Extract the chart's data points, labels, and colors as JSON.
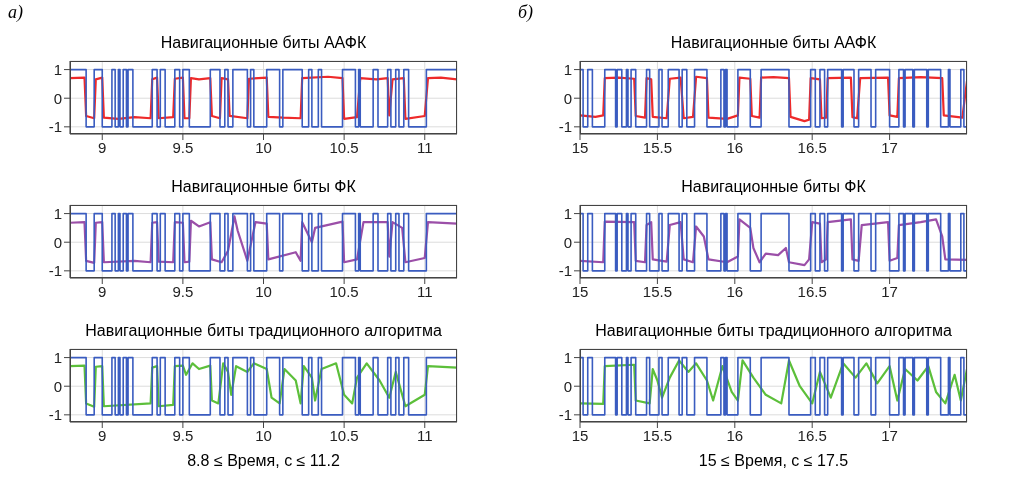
{
  "chart_data": [
    {
      "type": "line",
      "title": "Навигационные биты ААФК",
      "annotations": [
        "а)"
      ],
      "xlim": [
        8.8,
        11.2
      ],
      "xticks": [
        9,
        9.5,
        10,
        10.5,
        11
      ],
      "ylim": [
        -1.25,
        1.3
      ],
      "yticks": [
        -1,
        0,
        1
      ],
      "grid": true,
      "series": [
        {
          "color": "#ee2a2a",
          "x": [
            8.8,
            8.89,
            8.9,
            8.95,
            8.96,
            9.0,
            9.01,
            9.1,
            9.2,
            9.3,
            9.31,
            9.34,
            9.35,
            9.44,
            9.45,
            9.5,
            9.51,
            9.54,
            9.55,
            9.6,
            9.67,
            9.68,
            9.73,
            9.74,
            9.78,
            9.79,
            9.9,
            9.91,
            10.02,
            10.03,
            10.12,
            10.23,
            10.24,
            10.4,
            10.49,
            10.5,
            10.58,
            10.6,
            10.7,
            10.77,
            10.78,
            10.8,
            10.87,
            10.88,
            11.0,
            11.02,
            11.1,
            11.2
          ],
          "values": [
            0.7,
            0.72,
            -0.62,
            -0.7,
            0.66,
            0.72,
            -0.68,
            -0.72,
            -0.66,
            -0.7,
            0.66,
            0.72,
            -0.7,
            -0.66,
            0.68,
            0.72,
            -0.7,
            -0.7,
            0.7,
            0.66,
            0.7,
            -0.62,
            -0.7,
            0.7,
            0.66,
            -0.62,
            -0.7,
            0.68,
            0.72,
            -0.65,
            -0.68,
            -0.7,
            0.7,
            0.75,
            0.7,
            -0.72,
            -0.66,
            0.7,
            0.66,
            0.7,
            -0.6,
            0.66,
            0.7,
            -0.72,
            -0.62,
            0.7,
            0.72,
            0.66
          ]
        },
        {
          "type": "step",
          "color": "#3a5cc0",
          "x": [
            8.8,
            8.9,
            8.95,
            9.0,
            9.06,
            9.08,
            9.1,
            9.11,
            9.13,
            9.15,
            9.16,
            9.19,
            9.31,
            9.34,
            9.36,
            9.39,
            9.45,
            9.48,
            9.5,
            9.54,
            9.67,
            9.73,
            9.76,
            9.78,
            9.81,
            9.9,
            9.92,
            9.94,
            10.02,
            10.1,
            10.12,
            10.24,
            10.28,
            10.3,
            10.34,
            10.36,
            10.49,
            10.57,
            10.59,
            10.6,
            10.68,
            10.71,
            10.77,
            10.79,
            10.82,
            10.84,
            10.87,
            10.9,
            11.01,
            11.2
          ],
          "values": [
            1,
            -1,
            1,
            -1,
            1,
            -1,
            1,
            -1,
            1,
            -1,
            1,
            -1,
            1,
            -1,
            1,
            -1,
            1,
            -1,
            1,
            -1,
            1,
            -1,
            1,
            -1,
            1,
            -1,
            1,
            -1,
            1,
            -1,
            1,
            -1,
            1,
            -1,
            1,
            -1,
            1,
            -1,
            1,
            -1,
            1,
            -1,
            1,
            -1,
            1,
            -1,
            1,
            -1,
            1,
            1
          ]
        }
      ]
    },
    {
      "type": "line",
      "title": "Навигационные биты ААФК",
      "annotations": [
        "б)"
      ],
      "xlim": [
        15,
        17.5
      ],
      "xticks": [
        15,
        15.5,
        16,
        16.5,
        17
      ],
      "ylim": [
        -1.25,
        1.3
      ],
      "yticks": [
        -1,
        0,
        1
      ],
      "grid": true,
      "series": [
        {
          "color": "#ee2a2a",
          "x": [
            15.0,
            15.1,
            15.15,
            15.16,
            15.25,
            15.35,
            15.36,
            15.42,
            15.43,
            15.46,
            15.47,
            15.56,
            15.58,
            15.65,
            15.67,
            15.73,
            15.75,
            15.82,
            15.83,
            15.95,
            16.02,
            16.03,
            16.1,
            16.11,
            16.16,
            16.17,
            16.25,
            16.35,
            16.36,
            16.45,
            16.48,
            16.49,
            16.55,
            16.56,
            16.59,
            16.6,
            16.75,
            16.76,
            16.79,
            16.81,
            16.99,
            17.0,
            17.05,
            17.06,
            17.2,
            17.34,
            17.35,
            17.47,
            17.5
          ],
          "values": [
            -0.6,
            -0.65,
            -0.6,
            0.7,
            0.72,
            0.68,
            -0.62,
            -0.68,
            0.7,
            0.66,
            -0.65,
            -0.7,
            0.68,
            0.72,
            -0.7,
            -0.65,
            0.75,
            0.7,
            -0.68,
            -0.72,
            -0.6,
            0.72,
            0.68,
            -0.62,
            -0.68,
            0.72,
            0.74,
            0.7,
            -0.65,
            -0.8,
            -0.75,
            0.7,
            0.66,
            -0.7,
            -0.68,
            0.7,
            0.72,
            -0.66,
            -0.7,
            0.7,
            0.72,
            -0.6,
            -0.65,
            0.7,
            0.74,
            0.7,
            -0.6,
            -0.68,
            0.6
          ]
        },
        {
          "type": "step",
          "color": "#3a5cc0",
          "x": [
            15.0,
            15.02,
            15.05,
            15.08,
            15.16,
            15.23,
            15.24,
            15.27,
            15.3,
            15.31,
            15.33,
            15.36,
            15.43,
            15.45,
            15.51,
            15.53,
            15.57,
            15.64,
            15.66,
            15.69,
            15.74,
            15.82,
            15.91,
            15.93,
            15.94,
            15.95,
            16.02,
            16.1,
            16.17,
            16.35,
            16.49,
            16.52,
            16.55,
            16.58,
            16.6,
            16.69,
            16.7,
            16.77,
            16.8,
            16.88,
            16.91,
            17.0,
            17.06,
            17.09,
            17.1,
            17.15,
            17.16,
            17.24,
            17.25,
            17.33,
            17.38,
            17.39,
            17.46,
            17.48,
            17.5
          ],
          "values": [
            1,
            -1,
            1,
            -1,
            1,
            -1,
            1,
            -1,
            1,
            -1,
            1,
            -1,
            1,
            -1,
            1,
            -1,
            1,
            -1,
            1,
            -1,
            1,
            -1,
            1,
            -1,
            1,
            -1,
            1,
            -1,
            1,
            -1,
            1,
            -1,
            1,
            -1,
            1,
            -1,
            1,
            -1,
            1,
            -1,
            1,
            -1,
            1,
            -1,
            1,
            -1,
            1,
            -1,
            1,
            -1,
            1,
            -1,
            1,
            -1,
            -1
          ]
        }
      ]
    },
    {
      "type": "line",
      "title": "Навигационные биты ФК",
      "xlim": [
        8.8,
        11.2
      ],
      "xticks": [
        9,
        9.5,
        10,
        10.5,
        11
      ],
      "ylim": [
        -1.25,
        1.3
      ],
      "yticks": [
        -1,
        0,
        1
      ],
      "grid": true,
      "series": [
        {
          "color": "#9b4fa8",
          "x": [
            8.8,
            8.89,
            8.9,
            8.95,
            8.96,
            9.0,
            9.01,
            9.2,
            9.3,
            9.31,
            9.34,
            9.35,
            9.44,
            9.45,
            9.5,
            9.51,
            9.54,
            9.55,
            9.6,
            9.67,
            9.68,
            9.74,
            9.78,
            9.82,
            9.84,
            9.9,
            9.95,
            10.02,
            10.03,
            10.2,
            10.23,
            10.24,
            10.3,
            10.32,
            10.49,
            10.5,
            10.58,
            10.62,
            10.77,
            10.78,
            10.8,
            10.86,
            10.88,
            11.0,
            11.02,
            11.2
          ],
          "values": [
            0.68,
            0.7,
            -0.65,
            -0.72,
            0.68,
            0.7,
            -0.7,
            -0.65,
            -0.7,
            0.68,
            0.7,
            -0.68,
            -0.7,
            0.7,
            0.68,
            -0.7,
            -0.68,
            0.75,
            0.55,
            0.7,
            -0.6,
            -0.7,
            -0.3,
            0.9,
            0.4,
            -0.65,
            0.7,
            0.65,
            -0.6,
            -0.35,
            -0.65,
            0.7,
            0.0,
            0.5,
            0.72,
            -0.7,
            -0.6,
            0.7,
            0.7,
            -0.5,
            0.7,
            0.5,
            -0.7,
            -0.55,
            0.7,
            0.65
          ]
        },
        {
          "type": "step",
          "color": "#3a5cc0",
          "x": [
            8.8,
            8.9,
            8.95,
            9.0,
            9.06,
            9.08,
            9.1,
            9.11,
            9.13,
            9.15,
            9.16,
            9.19,
            9.31,
            9.34,
            9.36,
            9.39,
            9.45,
            9.48,
            9.5,
            9.54,
            9.67,
            9.73,
            9.76,
            9.78,
            9.81,
            9.9,
            9.92,
            9.94,
            10.02,
            10.1,
            10.12,
            10.24,
            10.28,
            10.3,
            10.34,
            10.36,
            10.49,
            10.57,
            10.59,
            10.6,
            10.68,
            10.71,
            10.77,
            10.79,
            10.82,
            10.84,
            10.87,
            10.9,
            11.01,
            11.2
          ],
          "values": [
            1,
            -1,
            1,
            -1,
            1,
            -1,
            1,
            -1,
            1,
            -1,
            1,
            -1,
            1,
            -1,
            1,
            -1,
            1,
            -1,
            1,
            -1,
            1,
            -1,
            1,
            -1,
            1,
            -1,
            1,
            -1,
            1,
            -1,
            1,
            -1,
            1,
            -1,
            1,
            -1,
            1,
            -1,
            1,
            -1,
            1,
            -1,
            1,
            -1,
            1,
            -1,
            1,
            -1,
            1,
            1
          ]
        }
      ]
    },
    {
      "type": "line",
      "title": "Навигационные биты ФК",
      "xlim": [
        15,
        17.5
      ],
      "xticks": [
        15,
        15.5,
        16,
        16.5,
        17
      ],
      "ylim": [
        -1.25,
        1.3
      ],
      "yticks": [
        -1,
        0,
        1
      ],
      "grid": true,
      "series": [
        {
          "color": "#9b4fa8",
          "x": [
            15.0,
            15.15,
            15.16,
            15.35,
            15.36,
            15.42,
            15.43,
            15.46,
            15.47,
            15.56,
            15.58,
            15.65,
            15.67,
            15.73,
            15.75,
            15.8,
            15.83,
            15.95,
            16.02,
            16.03,
            16.1,
            16.12,
            16.16,
            16.2,
            16.28,
            16.33,
            16.35,
            16.45,
            16.48,
            16.5,
            16.55,
            16.56,
            16.59,
            16.6,
            16.75,
            16.76,
            16.8,
            16.82,
            16.99,
            17.0,
            17.05,
            17.06,
            17.2,
            17.3,
            17.34,
            17.36,
            17.5
          ],
          "values": [
            -0.65,
            -0.7,
            0.72,
            0.7,
            -0.65,
            -0.7,
            0.6,
            0.7,
            -0.6,
            -0.68,
            0.6,
            0.7,
            -0.6,
            -0.7,
            0.55,
            0.2,
            -0.6,
            -0.7,
            -0.5,
            0.8,
            0.5,
            -0.2,
            -0.7,
            -0.4,
            -0.45,
            -0.2,
            -0.7,
            -0.8,
            -0.6,
            0.7,
            0.65,
            -0.7,
            -0.6,
            0.7,
            0.8,
            -0.6,
            -0.65,
            0.6,
            0.7,
            -0.65,
            -0.55,
            0.6,
            0.7,
            0.8,
            0.2,
            -0.6,
            -0.62
          ]
        },
        {
          "type": "step",
          "color": "#3a5cc0",
          "x": [
            15.0,
            15.02,
            15.05,
            15.08,
            15.16,
            15.23,
            15.24,
            15.27,
            15.3,
            15.31,
            15.33,
            15.36,
            15.43,
            15.45,
            15.51,
            15.53,
            15.57,
            15.64,
            15.66,
            15.69,
            15.74,
            15.82,
            15.91,
            15.93,
            15.94,
            15.95,
            16.02,
            16.1,
            16.17,
            16.35,
            16.49,
            16.52,
            16.55,
            16.58,
            16.6,
            16.69,
            16.7,
            16.77,
            16.8,
            16.88,
            16.91,
            17.0,
            17.06,
            17.09,
            17.1,
            17.15,
            17.16,
            17.24,
            17.25,
            17.33,
            17.38,
            17.39,
            17.46,
            17.48,
            17.5
          ],
          "values": [
            1,
            -1,
            1,
            -1,
            1,
            -1,
            1,
            -1,
            1,
            -1,
            1,
            -1,
            1,
            -1,
            1,
            -1,
            1,
            -1,
            1,
            -1,
            1,
            -1,
            1,
            -1,
            1,
            -1,
            1,
            -1,
            1,
            -1,
            1,
            -1,
            1,
            -1,
            1,
            -1,
            1,
            -1,
            1,
            -1,
            1,
            -1,
            1,
            -1,
            1,
            -1,
            1,
            -1,
            1,
            -1,
            1,
            -1,
            1,
            -1,
            -1
          ]
        }
      ]
    },
    {
      "type": "line",
      "title": "Навигационные биты традиционного алгоритма",
      "xlabel": "8.8 ≤ Время, с ≤ 11.2",
      "xlim": [
        8.8,
        11.2
      ],
      "xticks": [
        9,
        9.5,
        10,
        10.5,
        11
      ],
      "ylim": [
        -1.25,
        1.3
      ],
      "yticks": [
        -1,
        0,
        1
      ],
      "grid": true,
      "series": [
        {
          "color": "#5cbf3a",
          "x": [
            8.8,
            8.89,
            8.9,
            8.95,
            8.96,
            9.0,
            9.01,
            9.3,
            9.31,
            9.34,
            9.35,
            9.44,
            9.45,
            9.5,
            9.52,
            9.56,
            9.6,
            9.67,
            9.68,
            9.72,
            9.75,
            9.78,
            9.8,
            9.83,
            9.9,
            9.94,
            10.02,
            10.05,
            10.1,
            10.13,
            10.2,
            10.23,
            10.25,
            10.3,
            10.32,
            10.36,
            10.45,
            10.5,
            10.55,
            10.58,
            10.64,
            10.72,
            10.78,
            10.82,
            10.88,
            11.0,
            11.02,
            11.2
          ],
          "values": [
            0.7,
            0.72,
            -0.6,
            -0.72,
            0.68,
            0.7,
            -0.7,
            -0.6,
            0.65,
            0.7,
            -0.7,
            -0.65,
            0.7,
            0.72,
            0.4,
            0.8,
            0.6,
            0.72,
            -0.5,
            -0.6,
            0.8,
            0.5,
            -0.3,
            0.7,
            0.5,
            0.8,
            0.6,
            -0.4,
            -0.6,
            0.6,
            0.2,
            -0.6,
            0.7,
            0.3,
            -0.5,
            0.6,
            0.8,
            -0.3,
            -0.6,
            0.3,
            0.8,
            0.2,
            -0.4,
            0.5,
            -0.7,
            -0.3,
            0.7,
            0.65
          ]
        },
        {
          "type": "step",
          "color": "#3a5cc0",
          "x": [
            8.8,
            8.9,
            8.95,
            9.0,
            9.06,
            9.08,
            9.1,
            9.11,
            9.13,
            9.15,
            9.16,
            9.19,
            9.31,
            9.34,
            9.36,
            9.39,
            9.45,
            9.48,
            9.5,
            9.54,
            9.67,
            9.73,
            9.76,
            9.78,
            9.81,
            9.9,
            9.92,
            9.94,
            10.02,
            10.1,
            10.12,
            10.24,
            10.28,
            10.3,
            10.34,
            10.36,
            10.49,
            10.57,
            10.59,
            10.6,
            10.68,
            10.71,
            10.77,
            10.79,
            10.82,
            10.84,
            10.87,
            10.9,
            11.01,
            11.2
          ],
          "values": [
            1,
            -1,
            1,
            -1,
            1,
            -1,
            1,
            -1,
            1,
            -1,
            1,
            -1,
            1,
            -1,
            1,
            -1,
            1,
            -1,
            1,
            -1,
            1,
            -1,
            1,
            -1,
            1,
            -1,
            1,
            -1,
            1,
            -1,
            1,
            -1,
            1,
            -1,
            1,
            -1,
            1,
            -1,
            1,
            -1,
            1,
            -1,
            1,
            -1,
            1,
            -1,
            1,
            -1,
            1,
            1
          ]
        }
      ]
    },
    {
      "type": "line",
      "title": "Навигационные биты традиционного алгоритма",
      "xlabel": "15 ≤ Время, с ≤ 17.5",
      "xlim": [
        15,
        17.5
      ],
      "xticks": [
        15,
        15.5,
        16,
        16.5,
        17
      ],
      "ylim": [
        -1.25,
        1.3
      ],
      "yticks": [
        -1,
        0,
        1
      ],
      "grid": true,
      "series": [
        {
          "color": "#5cbf3a",
          "x": [
            15.0,
            15.15,
            15.16,
            15.35,
            15.36,
            15.45,
            15.47,
            15.5,
            15.53,
            15.58,
            15.64,
            15.7,
            15.75,
            15.82,
            15.86,
            15.92,
            15.98,
            16.02,
            16.05,
            16.12,
            16.2,
            16.3,
            16.35,
            16.42,
            16.5,
            16.55,
            16.62,
            16.7,
            16.78,
            16.85,
            16.92,
            17.0,
            17.05,
            17.1,
            17.18,
            17.25,
            17.3,
            17.36,
            17.42,
            17.46,
            17.5
          ],
          "values": [
            -0.6,
            -0.62,
            0.7,
            0.75,
            -0.5,
            -0.6,
            0.6,
            0.2,
            -0.4,
            0.3,
            0.9,
            0.5,
            0.8,
            0.2,
            -0.5,
            0.7,
            -0.2,
            -0.5,
            0.9,
            0.3,
            -0.3,
            -0.6,
            0.9,
            0.0,
            -0.6,
            0.5,
            -0.4,
            0.8,
            0.3,
            0.8,
            0.1,
            0.7,
            -0.5,
            0.6,
            0.2,
            0.7,
            -0.2,
            -0.6,
            0.4,
            -0.5,
            0.6
          ]
        },
        {
          "type": "step",
          "color": "#3a5cc0",
          "x": [
            15.0,
            15.02,
            15.05,
            15.08,
            15.16,
            15.23,
            15.24,
            15.27,
            15.3,
            15.31,
            15.33,
            15.36,
            15.43,
            15.45,
            15.51,
            15.53,
            15.57,
            15.64,
            15.66,
            15.69,
            15.74,
            15.82,
            15.91,
            15.93,
            15.94,
            15.95,
            16.02,
            16.1,
            16.17,
            16.35,
            16.49,
            16.52,
            16.55,
            16.58,
            16.6,
            16.69,
            16.7,
            16.77,
            16.8,
            16.88,
            16.91,
            17.0,
            17.06,
            17.09,
            17.1,
            17.15,
            17.16,
            17.24,
            17.25,
            17.33,
            17.38,
            17.39,
            17.46,
            17.48,
            17.5
          ],
          "values": [
            1,
            -1,
            1,
            -1,
            1,
            -1,
            1,
            -1,
            1,
            -1,
            1,
            -1,
            1,
            -1,
            1,
            -1,
            1,
            -1,
            1,
            -1,
            1,
            -1,
            1,
            -1,
            1,
            -1,
            1,
            -1,
            1,
            -1,
            1,
            -1,
            1,
            -1,
            1,
            -1,
            1,
            -1,
            1,
            -1,
            1,
            -1,
            1,
            -1,
            1,
            -1,
            1,
            -1,
            1,
            -1,
            1,
            -1,
            1,
            -1,
            -1
          ]
        }
      ]
    }
  ]
}
